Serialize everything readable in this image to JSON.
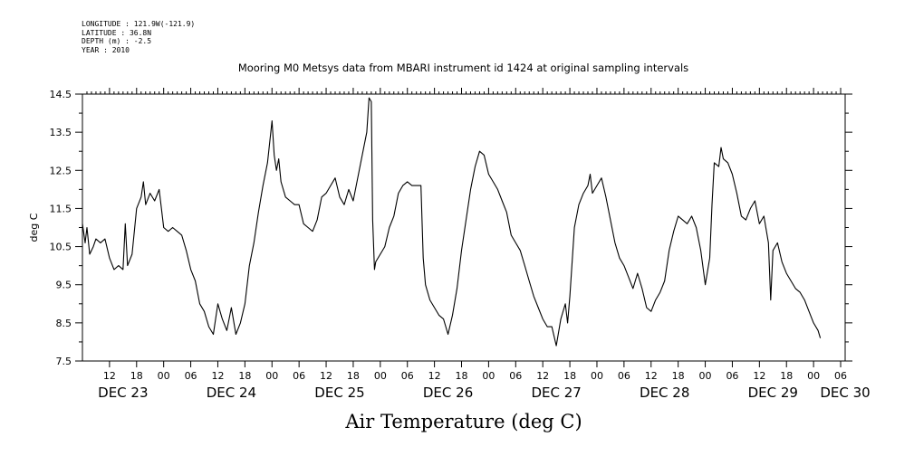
{
  "meta": {
    "longitude": "LONGITUDE : 121.9W(-121.9)",
    "latitude": "LATITUDE : 36.8N",
    "depth": "DEPTH (m) : -2.5",
    "year": "YEAR : 2010"
  },
  "chart_data": {
    "type": "line",
    "title": "Mooring M0 Metsys data from MBARI instrument id 1424 at original sampling intervals",
    "xlabel": "Air Temperature (deg C)",
    "ylabel": "deg C",
    "ylim": [
      7.5,
      14.5
    ],
    "xlim_hours": [
      0,
      168
    ],
    "grid": false,
    "y_ticks": [
      "7.5",
      "8.5",
      "9.5",
      "10.5",
      "11.5",
      "12.5",
      "13.5",
      "14.5"
    ],
    "x_hour_ticks": [
      {
        "h": 6,
        "label": "12"
      },
      {
        "h": 12,
        "label": "18"
      },
      {
        "h": 18,
        "label": "00"
      },
      {
        "h": 24,
        "label": "06"
      },
      {
        "h": 30,
        "label": "12"
      },
      {
        "h": 36,
        "label": "18"
      },
      {
        "h": 42,
        "label": "00"
      },
      {
        "h": 48,
        "label": "06"
      },
      {
        "h": 54,
        "label": "12"
      },
      {
        "h": 60,
        "label": "18"
      },
      {
        "h": 66,
        "label": "00"
      },
      {
        "h": 72,
        "label": "06"
      },
      {
        "h": 78,
        "label": "12"
      },
      {
        "h": 84,
        "label": "18"
      },
      {
        "h": 90,
        "label": "00"
      },
      {
        "h": 96,
        "label": "06"
      },
      {
        "h": 102,
        "label": "12"
      },
      {
        "h": 108,
        "label": "18"
      },
      {
        "h": 114,
        "label": "00"
      },
      {
        "h": 120,
        "label": "06"
      },
      {
        "h": 126,
        "label": "12"
      },
      {
        "h": 132,
        "label": "18"
      },
      {
        "h": 138,
        "label": "00"
      },
      {
        "h": 144,
        "label": "06"
      },
      {
        "h": 150,
        "label": "12"
      },
      {
        "h": 156,
        "label": "18"
      },
      {
        "h": 162,
        "label": "00"
      },
      {
        "h": 168,
        "label": "06"
      }
    ],
    "x_day_labels": [
      {
        "h": 9,
        "label": "DEC 23"
      },
      {
        "h": 33,
        "label": "DEC 24"
      },
      {
        "h": 57,
        "label": "DEC 25"
      },
      {
        "h": 81,
        "label": "DEC 26"
      },
      {
        "h": 105,
        "label": "DEC 27"
      },
      {
        "h": 129,
        "label": "DEC 28"
      },
      {
        "h": 153,
        "label": "DEC 29"
      },
      {
        "h": 169,
        "label": "DEC 30"
      }
    ],
    "series": [
      {
        "color": "#000000",
        "points": [
          [
            0,
            11.1
          ],
          [
            0.6,
            10.6
          ],
          [
            1,
            11.0
          ],
          [
            1.6,
            10.3
          ],
          [
            2.4,
            10.5
          ],
          [
            3,
            10.7
          ],
          [
            4,
            10.6
          ],
          [
            5,
            10.7
          ],
          [
            6,
            10.2
          ],
          [
            7,
            9.9
          ],
          [
            8,
            10.0
          ],
          [
            9,
            9.9
          ],
          [
            9.5,
            11.1
          ],
          [
            10,
            10.0
          ],
          [
            11,
            10.3
          ],
          [
            12,
            11.5
          ],
          [
            13,
            11.8
          ],
          [
            13.5,
            12.2
          ],
          [
            14,
            11.6
          ],
          [
            15,
            11.9
          ],
          [
            16,
            11.7
          ],
          [
            17,
            12.0
          ],
          [
            17.5,
            11.5
          ],
          [
            18,
            11.0
          ],
          [
            19,
            10.9
          ],
          [
            20,
            11.0
          ],
          [
            21,
            10.9
          ],
          [
            22,
            10.8
          ],
          [
            23,
            10.4
          ],
          [
            24,
            9.9
          ],
          [
            25,
            9.6
          ],
          [
            26,
            9.0
          ],
          [
            27,
            8.8
          ],
          [
            28,
            8.4
          ],
          [
            29,
            8.2
          ],
          [
            30,
            9.0
          ],
          [
            31,
            8.6
          ],
          [
            32,
            8.3
          ],
          [
            33,
            8.9
          ],
          [
            34,
            8.2
          ],
          [
            35,
            8.5
          ],
          [
            36,
            9.0
          ],
          [
            37,
            10.0
          ],
          [
            38,
            10.6
          ],
          [
            39,
            11.4
          ],
          [
            40,
            12.1
          ],
          [
            41,
            12.7
          ],
          [
            42,
            13.8
          ],
          [
            42.5,
            12.9
          ],
          [
            43,
            12.5
          ],
          [
            43.5,
            12.8
          ],
          [
            44,
            12.2
          ],
          [
            45,
            11.8
          ],
          [
            46,
            11.7
          ],
          [
            47,
            11.6
          ],
          [
            48,
            11.6
          ],
          [
            49,
            11.1
          ],
          [
            50,
            11.0
          ],
          [
            51,
            10.9
          ],
          [
            52,
            11.2
          ],
          [
            53,
            11.8
          ],
          [
            54,
            11.9
          ],
          [
            55,
            12.1
          ],
          [
            56,
            12.3
          ],
          [
            57,
            11.8
          ],
          [
            58,
            11.6
          ],
          [
            59,
            12.0
          ],
          [
            60,
            11.7
          ],
          [
            61,
            12.3
          ],
          [
            62,
            12.9
          ],
          [
            63,
            13.5
          ],
          [
            63.5,
            14.4
          ],
          [
            64,
            14.3
          ],
          [
            64.3,
            11.2
          ],
          [
            64.7,
            9.9
          ],
          [
            65,
            10.1
          ],
          [
            66,
            10.3
          ],
          [
            67,
            10.5
          ],
          [
            68,
            11.0
          ],
          [
            69,
            11.3
          ],
          [
            70,
            11.9
          ],
          [
            71,
            12.1
          ],
          [
            72,
            12.2
          ],
          [
            73,
            12.1
          ],
          [
            74,
            12.1
          ],
          [
            75,
            12.1
          ],
          [
            75.5,
            10.2
          ],
          [
            76,
            9.5
          ],
          [
            77,
            9.1
          ],
          [
            78,
            8.9
          ],
          [
            79,
            8.7
          ],
          [
            80,
            8.6
          ],
          [
            81,
            8.2
          ],
          [
            82,
            8.7
          ],
          [
            83,
            9.4
          ],
          [
            84,
            10.4
          ],
          [
            85,
            11.2
          ],
          [
            86,
            12.0
          ],
          [
            87,
            12.6
          ],
          [
            88,
            13.0
          ],
          [
            89,
            12.9
          ],
          [
            90,
            12.4
          ],
          [
            91,
            12.2
          ],
          [
            92,
            12.0
          ],
          [
            93,
            11.7
          ],
          [
            94,
            11.4
          ],
          [
            95,
            10.8
          ],
          [
            96,
            10.6
          ],
          [
            97,
            10.4
          ],
          [
            98,
            10.0
          ],
          [
            99,
            9.6
          ],
          [
            100,
            9.2
          ],
          [
            101,
            8.9
          ],
          [
            102,
            8.6
          ],
          [
            103,
            8.4
          ],
          [
            104,
            8.4
          ],
          [
            105,
            7.9
          ],
          [
            106,
            8.6
          ],
          [
            107,
            9.0
          ],
          [
            107.5,
            8.5
          ],
          [
            108,
            9.2
          ],
          [
            109,
            11.0
          ],
          [
            110,
            11.6
          ],
          [
            111,
            11.9
          ],
          [
            112,
            12.1
          ],
          [
            112.5,
            12.4
          ],
          [
            113,
            11.9
          ],
          [
            114,
            12.1
          ],
          [
            115,
            12.3
          ],
          [
            116,
            11.8
          ],
          [
            117,
            11.2
          ],
          [
            118,
            10.6
          ],
          [
            119,
            10.2
          ],
          [
            120,
            10.0
          ],
          [
            121,
            9.7
          ],
          [
            122,
            9.4
          ],
          [
            123,
            9.8
          ],
          [
            124,
            9.4
          ],
          [
            125,
            8.9
          ],
          [
            126,
            8.8
          ],
          [
            127,
            9.1
          ],
          [
            128,
            9.3
          ],
          [
            129,
            9.6
          ],
          [
            130,
            10.4
          ],
          [
            131,
            10.9
          ],
          [
            132,
            11.3
          ],
          [
            133,
            11.2
          ],
          [
            134,
            11.1
          ],
          [
            135,
            11.3
          ],
          [
            136,
            11.0
          ],
          [
            137,
            10.4
          ],
          [
            138,
            9.5
          ],
          [
            139,
            10.2
          ],
          [
            139.5,
            11.6
          ],
          [
            140,
            12.7
          ],
          [
            141,
            12.6
          ],
          [
            141.5,
            13.1
          ],
          [
            142,
            12.8
          ],
          [
            143,
            12.7
          ],
          [
            144,
            12.4
          ],
          [
            145,
            11.9
          ],
          [
            146,
            11.3
          ],
          [
            147,
            11.2
          ],
          [
            148,
            11.5
          ],
          [
            149,
            11.7
          ],
          [
            150,
            11.1
          ],
          [
            151,
            11.3
          ],
          [
            152,
            10.6
          ],
          [
            152.5,
            9.1
          ],
          [
            153,
            10.4
          ],
          [
            154,
            10.6
          ],
          [
            155,
            10.1
          ],
          [
            156,
            9.8
          ],
          [
            157,
            9.6
          ],
          [
            158,
            9.4
          ],
          [
            159,
            9.3
          ],
          [
            160,
            9.1
          ],
          [
            161,
            8.8
          ],
          [
            162,
            8.5
          ],
          [
            163,
            8.3
          ],
          [
            163.5,
            8.1
          ]
        ]
      }
    ]
  }
}
